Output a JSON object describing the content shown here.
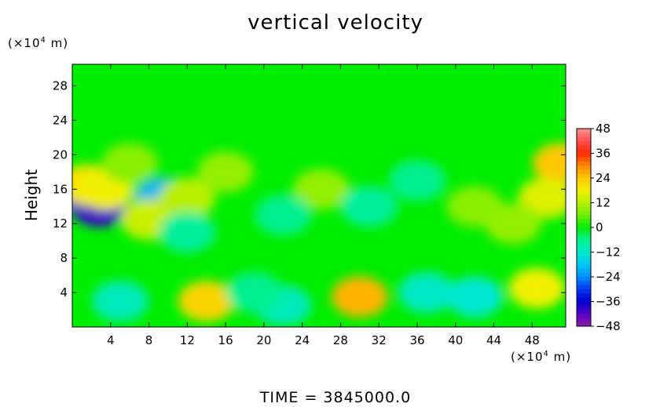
{
  "chart_data": {
    "type": "heatmap",
    "title": "vertical velocity",
    "ylabel": "Height",
    "x_unit_label": {
      "prefix": "(×10",
      "exp": "4",
      "suffix": " m)"
    },
    "y_unit_label": {
      "prefix": "(×10",
      "exp": "4",
      "suffix": " m)"
    },
    "xlim": [
      0,
      51.5
    ],
    "ylim": [
      0,
      30.5
    ],
    "x_ticks": [
      4,
      8,
      12,
      16,
      20,
      24,
      28,
      32,
      36,
      40,
      44,
      48
    ],
    "y_ticks": [
      4,
      8,
      12,
      16,
      20,
      24,
      28
    ],
    "colorbar": {
      "range": [
        -48,
        48
      ],
      "ticks": [
        48,
        36,
        24,
        12,
        0,
        -12,
        -24,
        -36,
        -48
      ]
    },
    "cells": [
      {
        "x": 14,
        "y": 3,
        "v": 22
      },
      {
        "x": 30,
        "y": 3.5,
        "v": 26
      },
      {
        "x": 48.5,
        "y": 4.5,
        "v": 18
      },
      {
        "x": 5,
        "y": 3,
        "v": -10
      },
      {
        "x": 22,
        "y": 2.5,
        "v": -10
      },
      {
        "x": 37,
        "y": 4,
        "v": -11
      },
      {
        "x": 42,
        "y": 3.5,
        "v": -12
      },
      {
        "x": 19,
        "y": 4,
        "v": -6
      },
      {
        "x": 1,
        "y": 15.5,
        "v": -30
      },
      {
        "x": 2.8,
        "y": 14,
        "v": -40
      },
      {
        "x": 1.5,
        "y": 16.5,
        "v": 20
      },
      {
        "x": 3.5,
        "y": 16,
        "v": 18
      },
      {
        "x": 9.5,
        "y": 15,
        "v": -20
      },
      {
        "x": 51,
        "y": 19,
        "v": 24
      },
      {
        "x": 49.5,
        "y": 15,
        "v": 16
      },
      {
        "x": 8,
        "y": 12.5,
        "v": 14
      },
      {
        "x": 12,
        "y": 15,
        "v": 12
      },
      {
        "x": 16,
        "y": 18,
        "v": 9
      },
      {
        "x": 26,
        "y": 16,
        "v": 9
      },
      {
        "x": 31,
        "y": 14,
        "v": -7
      },
      {
        "x": 22,
        "y": 13,
        "v": -6
      },
      {
        "x": 42,
        "y": 14,
        "v": 8
      },
      {
        "x": 6,
        "y": 19,
        "v": 8
      },
      {
        "x": 12,
        "y": 11,
        "v": -7
      },
      {
        "x": 36,
        "y": 17,
        "v": -6
      },
      {
        "x": 46,
        "y": 12,
        "v": 9
      }
    ],
    "time_label": "TIME  =  3845000.0"
  }
}
